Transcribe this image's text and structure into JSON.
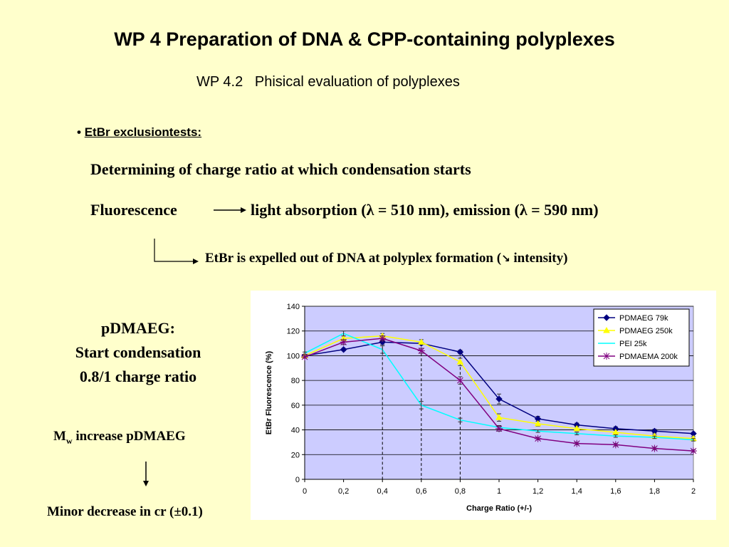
{
  "slide": {
    "title": "WP 4 Preparation of DNA & CPP-containing polyplexes",
    "subtitle": "WP 4.2   Phisical evaluation of polyplexes",
    "bullet": "EtBr exclusiontests:",
    "line1": "Determining of charge ratio at which condensation starts",
    "fluorescence": "Fluorescence",
    "absorption": "light absorption (λ = 510 nm), emission (λ = 590 nm)",
    "expelled": "EtBr is expelled out of DNA at polyplex formation (",
    "expelled_arrow": "↘",
    "expelled_tail": " intensity)",
    "left_block": [
      "pDMAEG:",
      "Start condensation",
      "0.8/1 charge ratio"
    ],
    "mw_main": "M",
    "mw_sub": "w",
    "mw_rest": " increase pDMAEG",
    "minor": "Minor decrease in cr (±0.1)"
  },
  "colors": {
    "background": "#FFFFCC",
    "plot_area": "#CCCCFF",
    "pdmaeg79k": "#000080",
    "pdmaeg250k": "#FFFF00",
    "pei25k": "#00FFFF",
    "pdmaema200k": "#800080"
  },
  "chart_data": {
    "type": "line",
    "title": "",
    "xlabel": "Charge Ratio (+/-)",
    "ylabel": "EtBr Fluorescence (%)",
    "x": [
      0,
      0.2,
      0.4,
      0.6,
      0.8,
      1,
      1.2,
      1.4,
      1.6,
      1.8,
      2
    ],
    "x_tick_labels": [
      "0",
      "0,2",
      "0,4",
      "0,6",
      "0,8",
      "1",
      "1,2",
      "1,4",
      "1,6",
      "1,8",
      "2"
    ],
    "y_ticks": [
      0,
      20,
      40,
      60,
      80,
      100,
      120,
      140
    ],
    "xlim": [
      0,
      2
    ],
    "ylim": [
      0,
      140
    ],
    "grid": true,
    "legend_position": "top-right",
    "reference_lines_x": [
      0.4,
      0.6,
      0.8
    ],
    "series": [
      {
        "name": "PDMAEG 79k",
        "color": "#000080",
        "marker": "diamond",
        "values": [
          100,
          105,
          111,
          110,
          103,
          65,
          49,
          44,
          41,
          39,
          37
        ],
        "errors": [
          1,
          1,
          2,
          1,
          1.5,
          4,
          2,
          1.5,
          1.5,
          1.5,
          1
        ]
      },
      {
        "name": "PDMAEG 250k",
        "color": "#FFFF00",
        "marker": "triangle",
        "values": [
          100,
          114,
          116,
          111,
          95,
          50,
          45,
          41,
          38,
          35,
          33
        ],
        "errors": [
          1,
          2,
          2,
          2,
          3,
          3,
          2,
          2,
          1.5,
          1.5,
          1.5
        ]
      },
      {
        "name": "PEI 25k",
        "color": "#00FFFF",
        "marker": "none",
        "values": [
          102,
          118,
          105,
          60,
          48,
          42,
          39,
          37,
          35,
          34,
          32
        ],
        "errors": [
          1,
          2,
          3,
          3,
          1.5,
          1.5,
          1,
          1,
          1,
          1,
          1
        ]
      },
      {
        "name": "PDMAEMA 200k",
        "color": "#800080",
        "marker": "star",
        "values": [
          99,
          111,
          114,
          104,
          80,
          41,
          33,
          29,
          28,
          25,
          23
        ],
        "errors": [
          1,
          2,
          2,
          2,
          3,
          2,
          1,
          1,
          1,
          1,
          1
        ]
      }
    ]
  }
}
